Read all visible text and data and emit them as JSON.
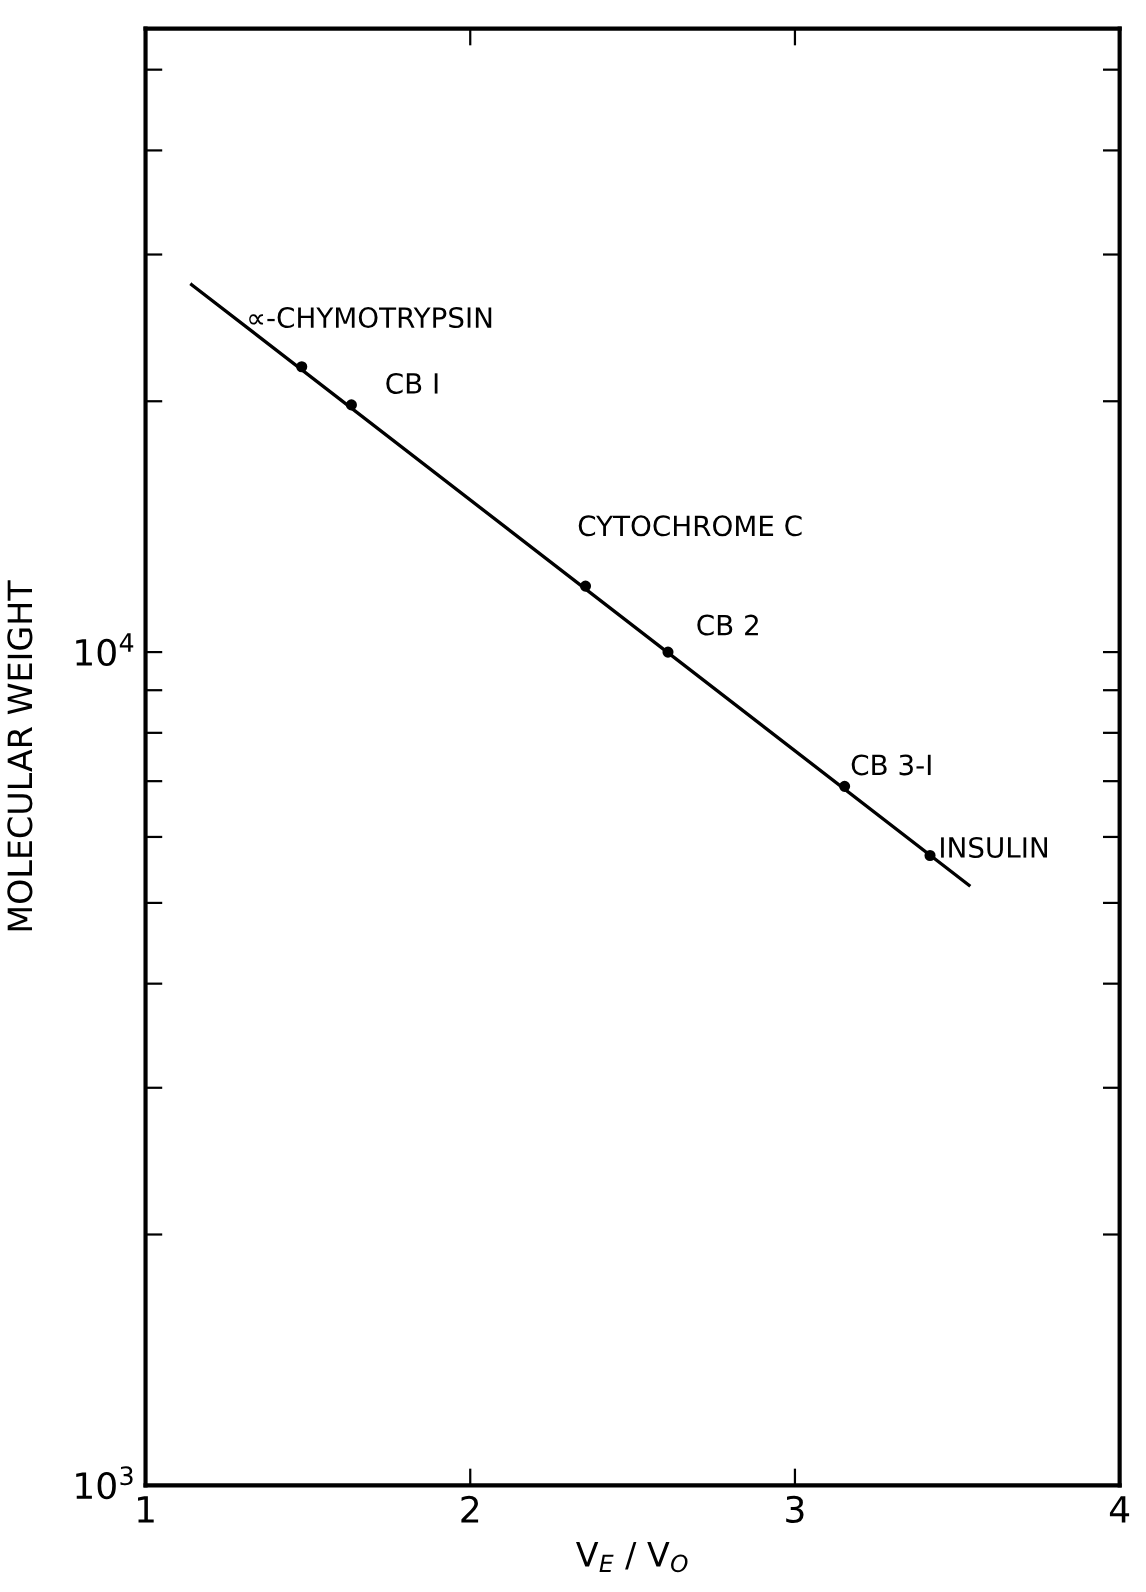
{
  "chart_data": {
    "type": "scatter",
    "xlabel": "V$_{E}$ / V$_{O}$",
    "ylabel": "MOLECULAR WEIGHT",
    "log": "y",
    "xlim": [
      1,
      4
    ],
    "xticks": [
      1,
      2,
      3,
      4
    ],
    "ylim": [
      1000,
      56000
    ],
    "yticks": [
      {
        "value": 1000,
        "label": "10$^{3}$"
      },
      {
        "value": 2000,
        "label": null
      },
      {
        "value": 3000,
        "label": null
      },
      {
        "value": 4000,
        "label": null
      },
      {
        "value": 5000,
        "label": null
      },
      {
        "value": 6000,
        "label": null
      },
      {
        "value": 7000,
        "label": null
      },
      {
        "value": 8000,
        "label": null
      },
      {
        "value": 9000,
        "label": null
      },
      {
        "value": 10000,
        "label": "10$^{4}$"
      },
      {
        "value": 20000,
        "label": null
      },
      {
        "value": 30000,
        "label": null
      },
      {
        "value": 40000,
        "label": null
      },
      {
        "value": 50000,
        "label": null
      }
    ],
    "grid": false,
    "marker": "circle",
    "series": [
      {
        "color": "#000000",
        "x": [
          1.481,
          1.634,
          2.355,
          2.609,
          3.153,
          3.416
        ],
        "values": [
          22000,
          19800,
          12000,
          10000,
          6900,
          5700
        ]
      },
      {
        "type": "line",
        "color": "#000000",
        "x": [
          1.142,
          3.536
        ],
        "values": [
          27600,
          5250
        ],
        "marker": "none",
        "line_style": "solid"
      }
    ],
    "annotations": [
      {
        "text": "∝-CHYMOTRYPSIN",
        "x": 1.481,
        "y": 22000
      },
      {
        "text": "CB I",
        "x": 1.634,
        "y": 19800
      },
      {
        "text": "CYTOCHROME C",
        "x": 2.355,
        "y": 12000
      },
      {
        "text": "CB 2",
        "x": 2.609,
        "y": 10000
      },
      {
        "text": "CB 3-I",
        "x": 3.153,
        "y": 6900
      },
      {
        "text": "INSULIN",
        "x": 3.416,
        "y": 5700
      }
    ]
  }
}
